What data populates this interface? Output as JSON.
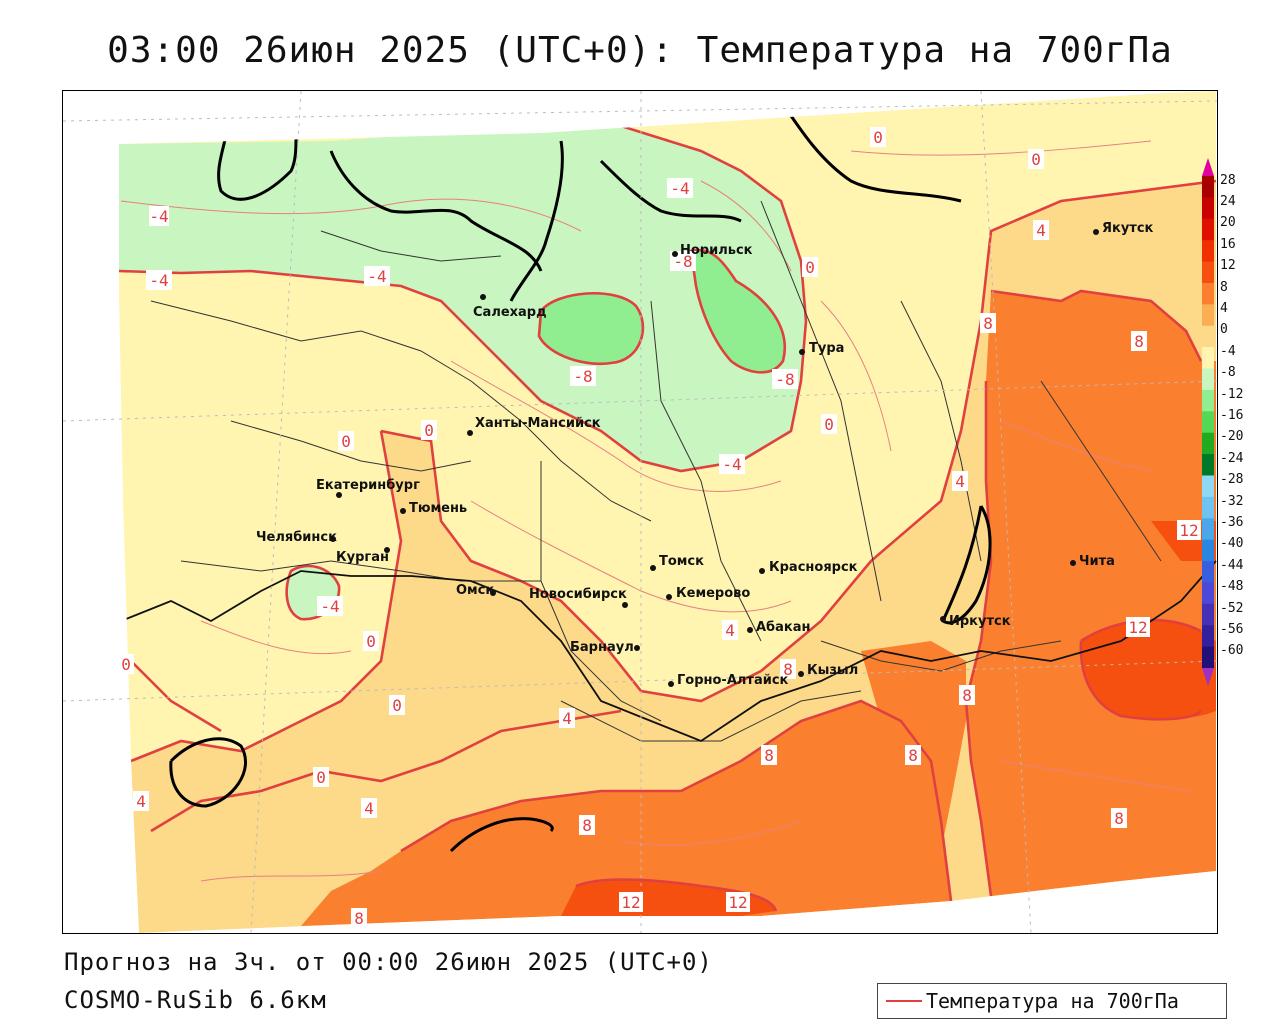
{
  "title": "03:00 26июн 2025 (UTC+0): Температура на 700гПа",
  "footer": {
    "forecast": "Прогноз на 3ч. от 00:00 26июн 2025 (UTC+0)",
    "model": "COSMO-RuSib 6.6км"
  },
  "legend": {
    "label": "Температура на 700гПа",
    "color": "#e04040"
  },
  "colorbar": {
    "ticks": [
      "28",
      "24",
      "20",
      "16",
      "12",
      "8",
      "4",
      "0",
      "-4",
      "-8",
      "-12",
      "-16",
      "-20",
      "-24",
      "-28",
      "-32",
      "-36",
      "-40",
      "-44",
      "-48",
      "-52",
      "-56",
      "-60"
    ],
    "colors": [
      "#a80000",
      "#c80000",
      "#e01000",
      "#f03000",
      "#f55010",
      "#fa8030",
      "#fcae55",
      "#fdd98a",
      "#fff5b0",
      "#c8f5c0",
      "#90ee90",
      "#55d855",
      "#22aa22",
      "#007a2a",
      "#8fd8f5",
      "#6ec3f0",
      "#4aa8ea",
      "#2b86e0",
      "#3a5ee0",
      "#4c48d8",
      "#4630b8",
      "#34209a",
      "#220f78"
    ],
    "arrow_top": "#e000a0",
    "arrow_bottom": "#a030c0"
  },
  "cities": [
    {
      "name": "Норильск"
    },
    {
      "name": "Салехард"
    },
    {
      "name": "Тура"
    },
    {
      "name": "Ханты-Мансийск"
    },
    {
      "name": "Екатеринбург"
    },
    {
      "name": "Тюмень"
    },
    {
      "name": "Челябинск"
    },
    {
      "name": "Курган"
    },
    {
      "name": "Омск"
    },
    {
      "name": "Новосибирск"
    },
    {
      "name": "Томск"
    },
    {
      "name": "Кемерово"
    },
    {
      "name": "Красноярск"
    },
    {
      "name": "Абакан"
    },
    {
      "name": "Барнаул"
    },
    {
      "name": "Горно-Алтайск"
    },
    {
      "name": "Кызыл"
    },
    {
      "name": "Иркутск"
    },
    {
      "name": "Чита"
    },
    {
      "name": "Якутск"
    }
  ],
  "contour_labels": [
    "-4",
    "-4",
    "-4",
    "-4",
    "-8",
    "-8",
    "-8",
    "-4",
    "-4",
    "0",
    "0",
    "0",
    "0",
    "0",
    "0",
    "0",
    "0",
    "0",
    "0",
    "4",
    "4",
    "4",
    "4",
    "4",
    "4",
    "8",
    "8",
    "8",
    "8",
    "8",
    "8",
    "8",
    "8",
    "8",
    "12",
    "12",
    "12",
    "12"
  ]
}
